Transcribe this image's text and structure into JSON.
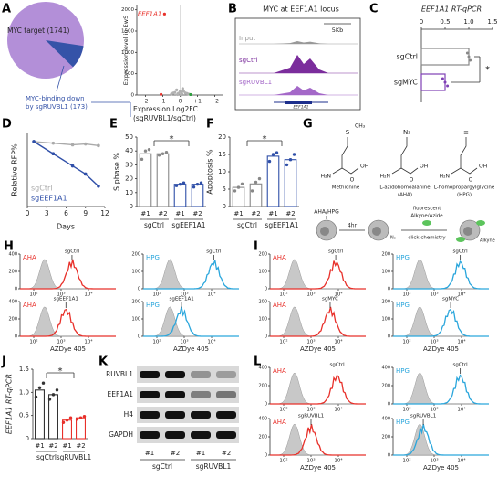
{
  "A": {
    "label": "A",
    "pie": {
      "type": "pie",
      "values": [
        1741,
        173
      ],
      "colors": [
        "#b38fd8",
        "#3553a8"
      ],
      "labels": [
        "MYC target (1741)"
      ],
      "label_lines": [
        "MYC-binding down",
        "by sgRUVBL1 (173)"
      ]
    },
    "volcano": {
      "type": "scatter",
      "ylabel": "Expression level in EwS",
      "xlabel_lines": [
        "Expression Log2FC",
        "(sgRUVBL1/sgCtrl)"
      ],
      "annotation": "EEF1A1",
      "xlim": [
        -2.5,
        2.5
      ],
      "xticks": [
        -2,
        -1,
        0,
        {
          "value": 1,
          "label": "+1"
        },
        {
          "value": 2,
          "label": "+2"
        }
      ],
      "ylim": [
        0,
        2100
      ],
      "yticks": [
        0,
        500,
        1000,
        1500,
        2000
      ],
      "x": [
        -0.9,
        -0.3,
        -0.2,
        -0.1,
        0,
        0.1,
        0.2,
        0.3,
        0.5,
        -0.5,
        0.15,
        -0.15,
        0.4,
        -0.4,
        0.05,
        -1.1,
        0.6
      ],
      "y": [
        1900,
        60,
        120,
        40,
        80,
        30,
        90,
        50,
        20,
        25,
        150,
        10,
        35,
        45,
        5,
        15,
        12
      ],
      "colors": [
        "#e8302a",
        "#b0b0b0",
        "#b0b0b0",
        "#b0b0b0",
        "#b0b0b0",
        "#b0b0b0",
        "#b0b0b0",
        "#b0b0b0",
        "#b0b0b0",
        "#b0b0b0",
        "#b0b0b0",
        "#b0b0b0",
        "#b0b0b0",
        "#b0b0b0",
        "#b0b0b0",
        "#e8302a",
        "#2e9e3e"
      ]
    }
  },
  "B": {
    "label": "B",
    "title": "MYC at EEF1A1 locus",
    "scale": "5Kb",
    "tracks": [
      "Input",
      "sgCtrl",
      "sgRUVBL1"
    ],
    "track_colors": [
      "#999999",
      "#7b2d9c",
      "#a468c8"
    ],
    "gene": "EEF1A1"
  },
  "C": {
    "label": "C",
    "type": "bar",
    "title": "EEF1A1 RT-qPCR",
    "categories": [
      "sgCtrl",
      "sgMYC"
    ],
    "values": [
      1.0,
      0.5
    ],
    "colors": [
      "#888888",
      "#7e3fb5"
    ],
    "xlim": [
      0,
      1.5
    ],
    "xticks": [
      0,
      0.5,
      {
        "value": 1,
        "label": "1.0"
      },
      1.5
    ],
    "points": [
      [
        0.97,
        1.0,
        1.03
      ],
      [
        0.45,
        0.5,
        0.55
      ]
    ],
    "significance": "*"
  },
  "D": {
    "label": "D",
    "type": "line",
    "ylabel": "Relative RFP%",
    "xlabel": "Days",
    "xlim": [
      0,
      12
    ],
    "xticks": [
      0,
      3,
      6,
      9,
      12
    ],
    "ylim": [
      0.2,
      1.1
    ],
    "x": [
      1,
      4,
      7,
      9,
      11
    ],
    "series": [
      {
        "name": "sgCtrl",
        "color": "#aaaaaa",
        "values": [
          1.0,
          0.98,
          0.96,
          0.97,
          0.95
        ]
      },
      {
        "name": "sgEEF1A1",
        "color": "#2f4fa8",
        "values": [
          1.0,
          0.85,
          0.7,
          0.6,
          0.45
        ]
      }
    ]
  },
  "E": {
    "label": "E",
    "type": "bar",
    "ylabel": "S phase %",
    "ylim": [
      0,
      50
    ],
    "yticks": [
      0,
      10,
      20,
      30,
      40,
      50
    ],
    "categories": [
      "#1",
      "#2",
      "#1",
      "#2"
    ],
    "groups": [
      "sgCtrl",
      "sgEEF1A1"
    ],
    "values": [
      38,
      38,
      16,
      16
    ],
    "colors": [
      "#888888",
      "#888888",
      "#2f4fa8",
      "#2f4fa8"
    ],
    "points": [
      [
        34,
        40,
        41
      ],
      [
        37,
        38,
        39
      ],
      [
        15,
        16,
        17
      ],
      [
        14,
        16,
        17
      ]
    ],
    "significance": "*"
  },
  "F": {
    "label": "F",
    "type": "bar",
    "ylabel": "Apoptosis %",
    "ylim": [
      0,
      20
    ],
    "yticks": [
      0,
      5,
      10,
      15,
      20
    ],
    "categories": [
      "#1",
      "#2",
      "#1",
      "#2"
    ],
    "groups": [
      "sgCtrl",
      "sgEEF1A1"
    ],
    "values": [
      5.5,
      6.5,
      14.5,
      13.5
    ],
    "colors": [
      "#888888",
      "#888888",
      "#2f4fa8",
      "#2f4fa8"
    ],
    "points": [
      [
        4.5,
        5.5,
        6.5
      ],
      [
        4.5,
        7,
        8
      ],
      [
        13,
        15,
        15.5
      ],
      [
        12,
        13.5,
        15
      ]
    ],
    "significance": "*"
  },
  "G": {
    "label": "G",
    "amine": "H₂N",
    "hydroxyl": "OH",
    "carbonyl": "O",
    "molecules": [
      {
        "side": "S",
        "tail": "CH₃",
        "name_lines": [
          "Methionine"
        ]
      },
      {
        "side": "N₃",
        "tail": "",
        "name_lines": [
          "L-azidohomoalanine",
          "(AHA)"
        ]
      },
      {
        "side": "≡",
        "tail": "",
        "name_lines": [
          "L-homopropargylglycine",
          "(HPG)"
        ]
      }
    ],
    "step_label": "AHA/HPG",
    "time": "4hr",
    "reagent_lines": [
      "fluorescent",
      "Alkyne/Azide"
    ],
    "reaction": "click chemistry",
    "cell_labels": [
      "N₃",
      "Alkyne"
    ]
  },
  "H": {
    "label": "H",
    "xlabel": "AZDye 405",
    "xticks": [
      {
        "value": 100,
        "label": "10²"
      },
      {
        "value": 1000,
        "label": "10³"
      },
      {
        "value": 10000,
        "label": "10⁴"
      }
    ],
    "plots": [
      {
        "probe": "AHA",
        "sample": "sgCtrl",
        "color": "#e8302a",
        "peak": 2500,
        "control_peak": 250,
        "yticks": [
          0,
          200,
          400
        ]
      },
      {
        "probe": "HPG",
        "sample": "sgCtrl",
        "color": "#2aa6dc",
        "peak": 12000,
        "control_peak": 300,
        "yticks": [
          0,
          100,
          200
        ]
      },
      {
        "probe": "AHA",
        "sample": "sgEEF1A1",
        "color": "#e8302a",
        "peak": 1500,
        "control_peak": 250,
        "yticks": [
          0,
          200,
          400
        ]
      },
      {
        "probe": "HPG",
        "sample": "sgEEF1A1",
        "color": "#2aa6dc",
        "peak": 800,
        "control_peak": 300,
        "yticks": [
          0,
          100,
          200
        ]
      }
    ]
  },
  "I": {
    "label": "I",
    "xlabel": "AZDye 405",
    "xticks": [
      {
        "value": 100,
        "label": "10²"
      },
      {
        "value": 1000,
        "label": "10³"
      },
      {
        "value": 10000,
        "label": "10⁴"
      }
    ],
    "plots": [
      {
        "probe": "AHA",
        "sample": "sgCtrl",
        "color": "#e8302a",
        "peak": 8000,
        "control_peak": 250,
        "yticks": [
          0,
          100,
          200
        ]
      },
      {
        "probe": "HPG",
        "sample": "sgCtrl",
        "color": "#2aa6dc",
        "peak": 9000,
        "control_peak": 300,
        "yticks": [
          0,
          100,
          200
        ]
      },
      {
        "probe": "AHA",
        "sample": "sgMYC",
        "color": "#e8302a",
        "peak": 5000,
        "control_peak": 250,
        "yticks": [
          0,
          100,
          200
        ]
      },
      {
        "probe": "HPG",
        "sample": "sgMYC",
        "color": "#2aa6dc",
        "peak": 4000,
        "control_peak": 300,
        "yticks": [
          0,
          100,
          200
        ]
      }
    ]
  },
  "J": {
    "label": "J",
    "type": "bar",
    "ylabel": "EEF1A1 RT-qPCR",
    "ylim": [
      0,
      1.5
    ],
    "yticks": [
      0,
      0.5,
      {
        "value": 1,
        "label": "1.0"
      },
      1.5
    ],
    "categories": [
      "#1",
      "#2",
      "#1",
      "#2"
    ],
    "groups": [
      "sgCtrl",
      "sgRUVBL1"
    ],
    "values": [
      1.05,
      0.95,
      0.4,
      0.45
    ],
    "colors": [
      "#333333",
      "#333333",
      "#e8302a",
      "#e8302a"
    ],
    "points": [
      [
        0.9,
        1.1,
        1.2
      ],
      [
        0.85,
        0.95,
        1.05
      ],
      [
        0.35,
        0.4,
        0.45
      ],
      [
        0.42,
        0.45,
        0.48
      ]
    ],
    "significance": "*"
  },
  "K": {
    "label": "K",
    "rows": [
      "RUVBL1",
      "EEF1A1",
      "H4",
      "GAPDH"
    ],
    "band_intensity": [
      [
        1,
        1,
        0.35,
        0.3
      ],
      [
        1,
        1,
        0.45,
        0.5
      ],
      [
        1,
        1,
        1,
        1
      ],
      [
        1,
        1,
        1,
        1
      ]
    ],
    "lanes": [
      "#1",
      "#2",
      "#1",
      "#2"
    ],
    "groups": [
      "sgCtrl",
      "sgRUVBL1"
    ]
  },
  "L": {
    "label": "L",
    "xlabel": "AZDye 405",
    "xticks": [
      {
        "value": 100,
        "label": "10²"
      },
      {
        "value": 1000,
        "label": "10³"
      },
      {
        "value": 10000,
        "label": "10⁴"
      }
    ],
    "plots": [
      {
        "probe": "AHA",
        "sample": "sgCtrl",
        "color": "#e8302a",
        "peak": 9000,
        "control_peak": 250,
        "yticks": [
          0,
          200,
          400
        ]
      },
      {
        "probe": "HPG",
        "sample": "sgCtrl",
        "color": "#2aa6dc",
        "peak": 9000,
        "control_peak": 300,
        "yticks": [
          0,
          200,
          400
        ]
      },
      {
        "probe": "AHA",
        "sample": "sgRUVBL1",
        "color": "#e8302a",
        "peak": 1000,
        "control_peak": 250,
        "yticks": [
          0,
          200,
          400
        ]
      },
      {
        "probe": "HPG",
        "sample": "sgRUVBL1",
        "color": "#2aa6dc",
        "peak": 400,
        "control_peak": 300,
        "yticks": [
          0,
          200,
          400
        ]
      }
    ]
  }
}
